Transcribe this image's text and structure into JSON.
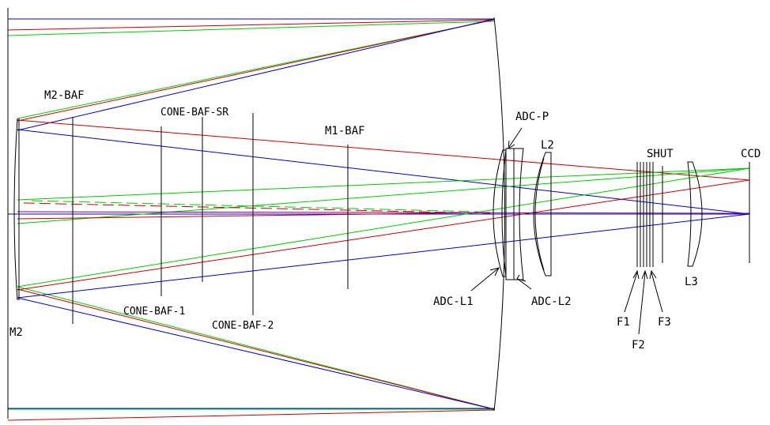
{
  "colors": {
    "background": "#ffffff",
    "elements": "#000000",
    "ray_green": "#00cc00",
    "ray_red": "#cc0000",
    "ray_blue": "#0000cc",
    "ray_purple": "#880088"
  },
  "labels": {
    "m2_baf": "M2-BAF",
    "cone_baf_sr": "CONE-BAF-SR",
    "m1_baf": "M1-BAF",
    "adc_p": "ADC-P",
    "l2": "L2",
    "shut": "SHUT",
    "ccd": "CCD",
    "m2": "M2",
    "cone_baf_1": "CONE-BAF-1",
    "cone_baf_2": "CONE-BAF-2",
    "adc_l1": "ADC-L1",
    "adc_l2": "ADC-L2",
    "l3": "L3",
    "f1": "F1",
    "f2": "F2",
    "f3": "F3"
  }
}
